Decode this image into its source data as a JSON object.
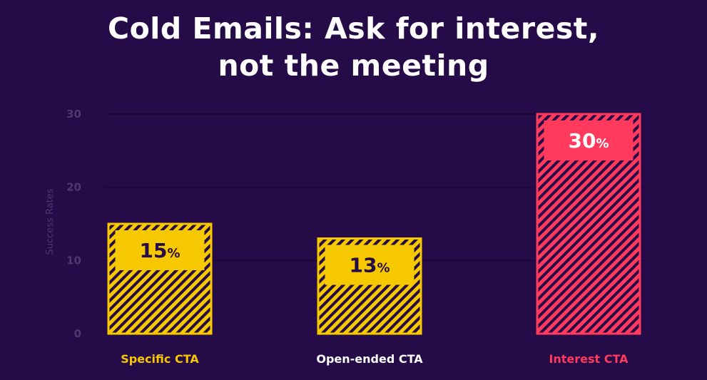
{
  "chart_data": {
    "type": "bar",
    "title_lines": [
      "Cold Emails: Ask for interest,",
      "not the meeting"
    ],
    "ylabel": "Success Rates",
    "xlabel": "",
    "ylim": [
      0,
      30
    ],
    "yticks": [
      0,
      10,
      20,
      30
    ],
    "grid": true,
    "categories": [
      "Specific CTA",
      "Open-ended CTA",
      "Interest CTA"
    ],
    "values": [
      15,
      13,
      30
    ],
    "data_labels": [
      "15",
      "13",
      "30"
    ],
    "unit": "%",
    "colors": {
      "background": "#250b47",
      "specific": "#f5c800",
      "open_ended_bar": "#f5c800",
      "open_ended_label": "#ffffff",
      "interest": "#ff3a5c",
      "value_text_yellow": "#250b47",
      "value_text_red": "#ffffff",
      "axis_text": "#4d3a6c"
    }
  }
}
